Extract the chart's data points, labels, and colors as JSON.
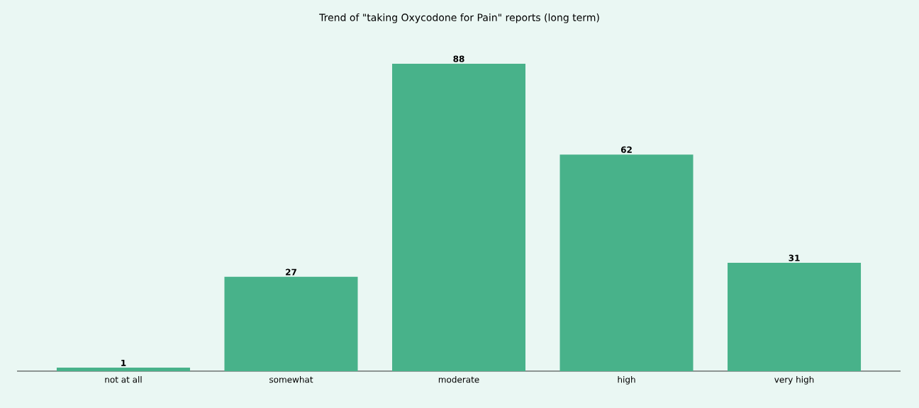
{
  "chart_data": {
    "type": "bar",
    "title": "Trend of \"taking Oxycodone for Pain\" reports (long term)",
    "categories": [
      "not at all",
      "somewhat",
      "moderate",
      "high",
      "very high"
    ],
    "values": [
      1,
      27,
      88,
      62,
      31
    ],
    "color": "#48b28a",
    "data_labels": true
  }
}
